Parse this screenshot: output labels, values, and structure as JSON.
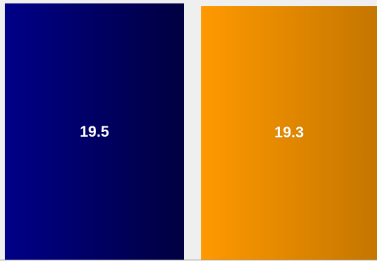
{
  "chart_data": {
    "type": "bar",
    "categories": [
      "",
      ""
    ],
    "values": [
      19.5,
      19.3
    ],
    "labels": [
      "19.5",
      "19.3"
    ],
    "colors": [
      {
        "start": "#000088",
        "end": "#000040"
      },
      {
        "start": "#ff9900",
        "end": "#c47600"
      }
    ],
    "ylim": [
      0,
      19.5
    ],
    "grid": false,
    "legend": "none"
  }
}
